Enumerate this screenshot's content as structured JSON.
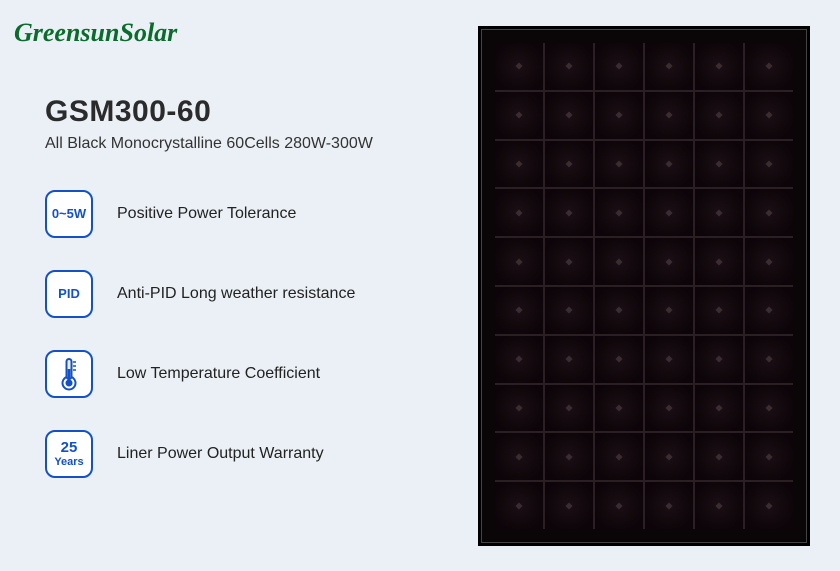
{
  "brand": {
    "part1": "Greensun",
    "part2": "Solar",
    "color": "#0a6b2c"
  },
  "product": {
    "model": "GSM300-60",
    "subtitle": "All Black Monocrystalline 60Cells 280W-300W"
  },
  "features": [
    {
      "icon_type": "text",
      "icon_text": "0~5W",
      "label": "Positive Power Tolerance"
    },
    {
      "icon_type": "text",
      "icon_text": "PID",
      "label": "Anti-PID Long weather resistance"
    },
    {
      "icon_type": "thermometer",
      "label": "Low Temperature Coefficient"
    },
    {
      "icon_type": "text2line",
      "icon_line1": "25",
      "icon_line2": "Years",
      "label": "Liner Power Output Warranty"
    }
  ],
  "panel": {
    "cols": 6,
    "rows": 10,
    "frame_color": "#000000",
    "cell_color": "#0c0408"
  },
  "colors": {
    "background": "#eaf0f5",
    "accent": "#1451c7",
    "text": "#222222"
  }
}
